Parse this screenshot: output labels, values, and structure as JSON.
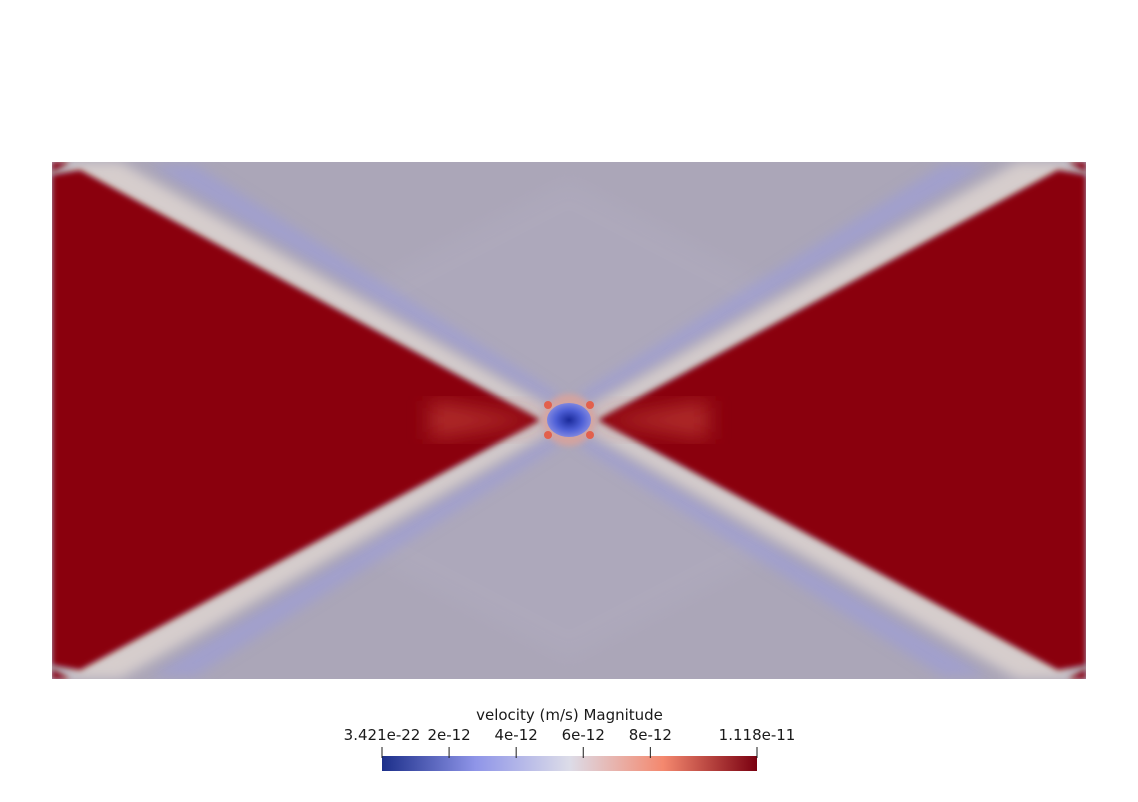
{
  "scalar_bar": {
    "title": "velocity (m/s) Magnitude",
    "min_label": "3.421e-22",
    "max_label": "1.118e-11",
    "ticks": [
      "2e-12",
      "4e-12",
      "6e-12",
      "8e-12"
    ],
    "range": [
      3.421e-22,
      1.118e-11
    ],
    "tick_values": [
      2e-12,
      4e-12,
      6e-12,
      8e-12
    ],
    "colormap": "Cool to Warm",
    "colors": {
      "low": "#1c2f8a",
      "mid_low": "#8f95e8",
      "mid": "#dcdce8",
      "mid_high": "#f4886e",
      "high": "#7a0010"
    }
  },
  "field_colors": {
    "background": "#aba6b8",
    "high_region": "#8a000f",
    "band_light": "#d6cdcc",
    "band_blue": "#9d9cd6",
    "center_low": "#2f3fbf"
  }
}
